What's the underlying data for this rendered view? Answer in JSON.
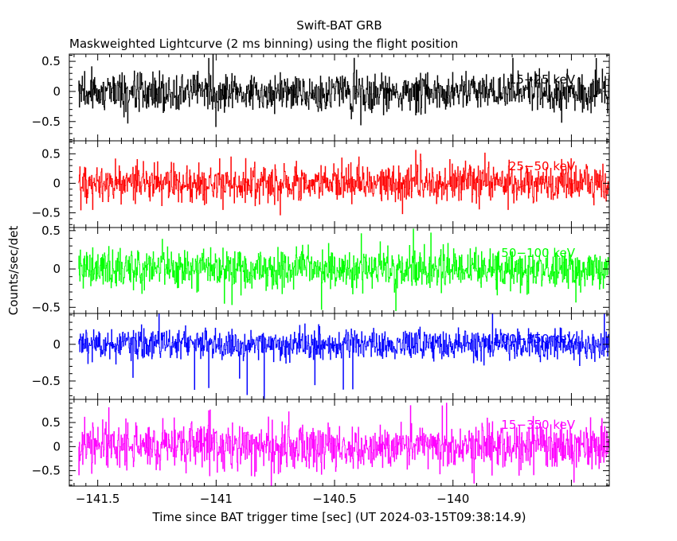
{
  "title": "Swift-BAT GRB",
  "subtitle": "Maskweighted Lightcurve (2 ms binning) using the flight position",
  "xlabel": "Time since BAT trigger time [sec] (UT 2024-03-15T09:38:14.9)",
  "ylabel": "Counts/sec/det",
  "chart_data": {
    "type": "line",
    "title": "Swift-BAT GRB",
    "subtitle": "Maskweighted Lightcurve (2 ms binning) using the flight position",
    "xlabel": "Time since BAT trigger time [sec] (UT 2024-03-15T09:38:14.9)",
    "ylabel": "Counts/sec/det",
    "xlim": [
      -141.62,
      -139.34
    ],
    "x_start": -141.58,
    "x_end": -139.34,
    "bin_seconds": 0.002,
    "x_ticks": [
      {
        "value": -141.5,
        "label": "−141.5"
      },
      {
        "value": -141,
        "label": "−141"
      },
      {
        "value": -140.5,
        "label": "−140.5"
      },
      {
        "value": -140,
        "label": "−140"
      }
    ],
    "grid": false,
    "series": [
      {
        "name": "15−25 keV",
        "color": "#000000",
        "ylim": [
          -0.82,
          0.62
        ],
        "amplitude": 0.2,
        "spike": 0.62,
        "y_ticks": [
          {
            "value": 0.5,
            "label": "0.5"
          },
          {
            "value": 0,
            "label": "0"
          },
          {
            "value": -0.5,
            "label": "−0.5"
          }
        ]
      },
      {
        "name": "25−50 keV",
        "color": "#ff0000",
        "ylim": [
          -0.75,
          0.72
        ],
        "amplitude": 0.2,
        "spike": 0.6,
        "y_ticks": [
          {
            "value": 0.5,
            "label": "0.5"
          },
          {
            "value": 0,
            "label": "0"
          },
          {
            "value": -0.5,
            "label": "−0.5"
          }
        ]
      },
      {
        "name": "50−100 keV",
        "color": "#00ff00",
        "ylim": [
          -0.58,
          0.54
        ],
        "amplitude": 0.16,
        "spike": 0.55,
        "y_ticks": [
          {
            "value": 0.5,
            "label": "0.5"
          },
          {
            "value": 0,
            "label": "0"
          },
          {
            "value": -0.5,
            "label": "−0.5"
          }
        ]
      },
      {
        "name": "100−350 keV",
        "color": "#0000ff",
        "ylim": [
          -0.75,
          0.42
        ],
        "amplitude": 0.13,
        "spike": 0.75,
        "y_ticks": [
          {
            "value": 0,
            "label": "0"
          },
          {
            "value": -0.5,
            "label": "−0.5"
          }
        ]
      },
      {
        "name": "15−350 keV",
        "color": "#ff00ff",
        "ylim": [
          -0.82,
          0.98
        ],
        "amplitude": 0.3,
        "spike": 0.95,
        "y_ticks": [
          {
            "value": 0.5,
            "label": "0.5"
          },
          {
            "value": 0,
            "label": "0"
          },
          {
            "value": -0.5,
            "label": "−0.5"
          }
        ]
      }
    ]
  }
}
